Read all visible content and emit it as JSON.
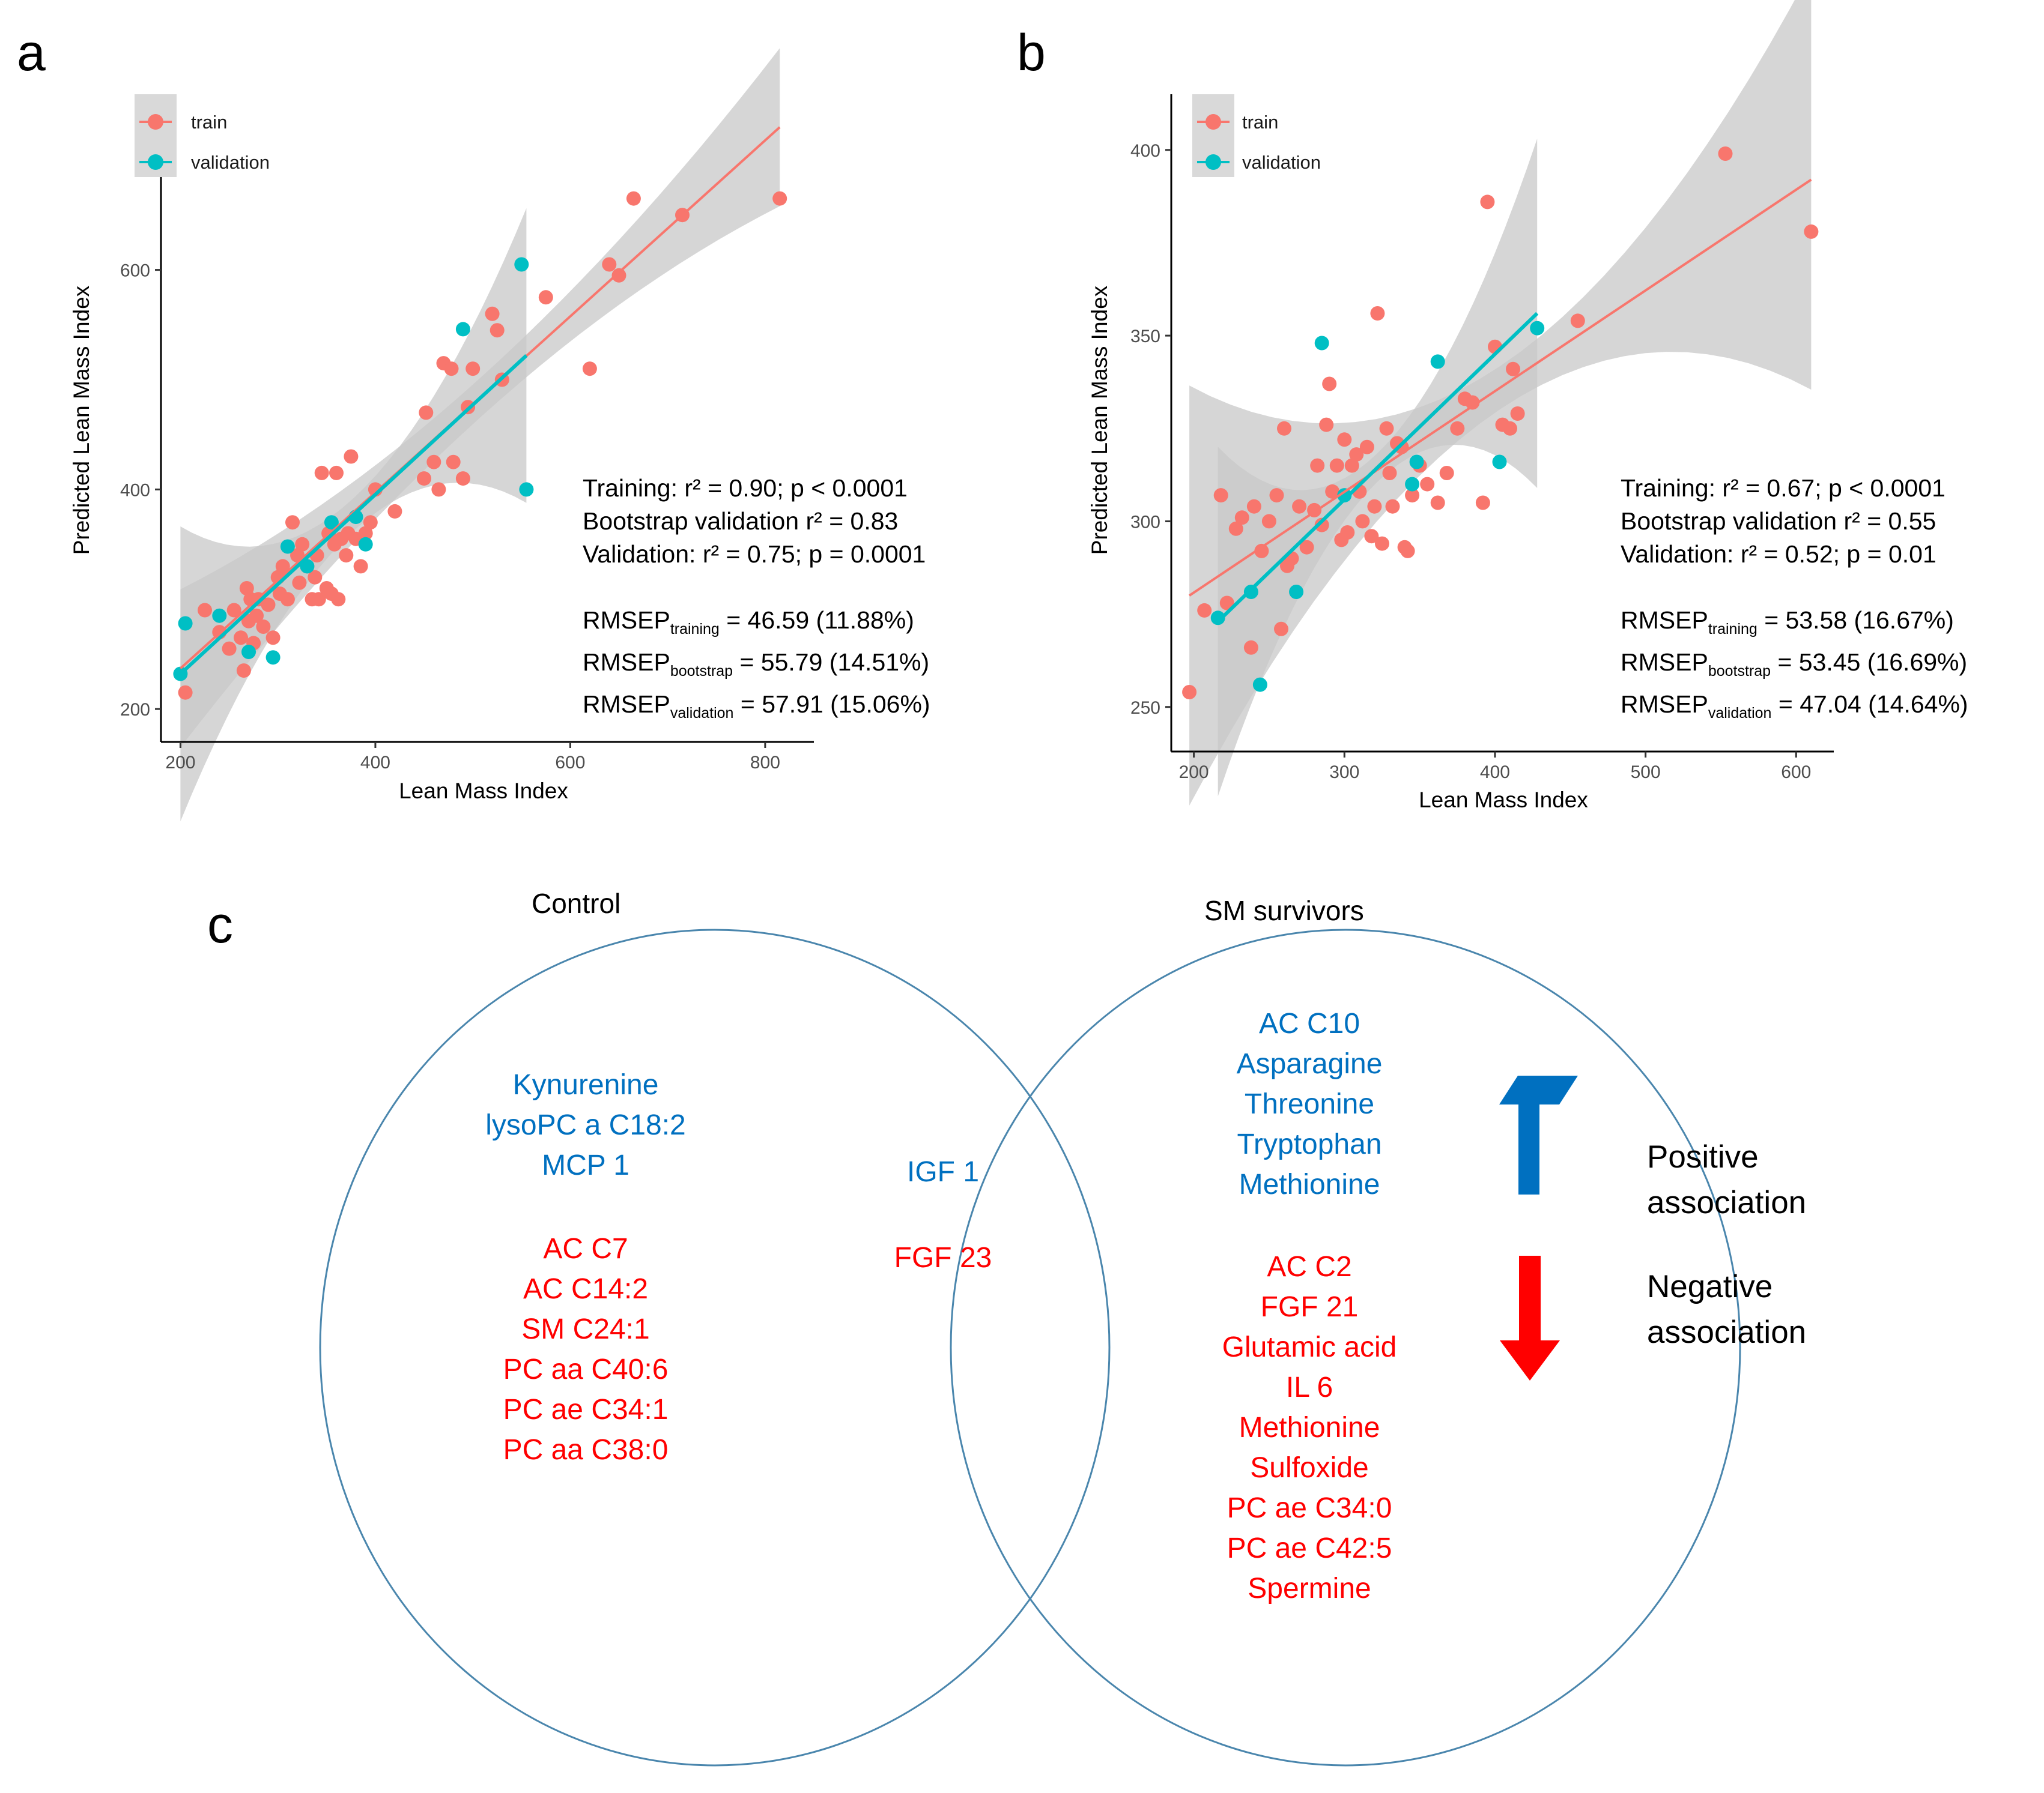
{
  "panel_labels": {
    "a": "a",
    "b": "b",
    "c": "c"
  },
  "colors": {
    "train": "#F8766D",
    "validation": "#00BFC4",
    "band": "#c8c8c8",
    "venn": "#4a86ad",
    "positive": "#0070C0",
    "negative": "#FF0000"
  },
  "legend": {
    "train": "train",
    "validation": "validation"
  },
  "chart_data": [
    {
      "type": "scatter",
      "panel": "a",
      "xlabel": "Lean Mass Index",
      "ylabel": "Predicted Lean Mass Index",
      "xlim": [
        180,
        850
      ],
      "ylim": [
        170,
        760
      ],
      "xticks": [
        200,
        400,
        600,
        800
      ],
      "yticks": [
        200,
        400,
        600
      ],
      "legend_entries": [
        "train",
        "validation"
      ],
      "legend_position": "top-left",
      "series": [
        {
          "name": "train",
          "x": [
            205,
            225,
            240,
            250,
            255,
            262,
            265,
            268,
            270,
            272,
            275,
            278,
            280,
            285,
            290,
            295,
            300,
            302,
            305,
            310,
            315,
            320,
            322,
            325,
            330,
            335,
            338,
            340,
            342,
            345,
            350,
            352,
            355,
            358,
            360,
            362,
            365,
            370,
            372,
            375,
            380,
            385,
            390,
            395,
            400,
            420,
            450,
            452,
            460,
            465,
            470,
            478,
            480,
            490,
            495,
            500,
            520,
            525,
            530,
            575,
            620,
            640,
            650,
            665,
            715,
            815
          ],
          "y": [
            215,
            290,
            270,
            255,
            290,
            265,
            235,
            310,
            280,
            300,
            260,
            285,
            300,
            275,
            295,
            265,
            320,
            305,
            330,
            300,
            370,
            340,
            315,
            350,
            330,
            300,
            320,
            340,
            300,
            415,
            310,
            360,
            305,
            350,
            415,
            300,
            355,
            340,
            360,
            430,
            355,
            330,
            360,
            370,
            400,
            380,
            410,
            470,
            425,
            400,
            515,
            510,
            425,
            410,
            475,
            510,
            560,
            545,
            500,
            575,
            510,
            605,
            595,
            665,
            650,
            665
          ]
        },
        {
          "name": "validation",
          "x": [
            200,
            205,
            240,
            270,
            295,
            310,
            330,
            355,
            380,
            390,
            490,
            550,
            555
          ],
          "y": [
            232,
            278,
            285,
            252,
            247,
            348,
            330,
            370,
            375,
            350,
            546,
            605,
            400
          ]
        }
      ],
      "fits": [
        {
          "name": "train",
          "x": [
            200,
            815
          ],
          "y": [
            237,
            730
          ]
        },
        {
          "name": "validation",
          "x": [
            200,
            555
          ],
          "y": [
            232,
            522
          ]
        }
      ],
      "stats": {
        "training": "Training:  r² = 0.90; p < 0.0001",
        "bootstrap": "Bootstrap  validation  r² = 0.83",
        "validation": "Validation:  r² = 0.75; p = 0.0001",
        "rmsep_label": "RMSEP",
        "rmsep_training_sub": "training",
        "rmsep_training_val": "= 46.59 (11.88%)",
        "rmsep_bootstrap_sub": "bootstrap",
        "rmsep_bootstrap_val": "= 55.79 (14.51%)",
        "rmsep_validation_sub": "validation",
        "rmsep_validation_val": "= 57.91 (15.06%)"
      }
    },
    {
      "type": "scatter",
      "panel": "b",
      "xlabel": "Lean Mass Index",
      "ylabel": "Predicted Lean Mass Index",
      "xlim": [
        185,
        625
      ],
      "ylim": [
        238,
        415
      ],
      "xticks": [
        200,
        300,
        400,
        500,
        600
      ],
      "yticks": [
        250,
        300,
        350,
        400
      ],
      "legend_entries": [
        "train",
        "validation"
      ],
      "legend_position": "top-left",
      "series": [
        {
          "name": "train",
          "x": [
            197,
            207,
            218,
            222,
            228,
            232,
            238,
            240,
            245,
            250,
            255,
            258,
            260,
            262,
            265,
            270,
            275,
            280,
            282,
            285,
            288,
            290,
            292,
            295,
            298,
            300,
            302,
            305,
            308,
            310,
            312,
            315,
            318,
            320,
            322,
            325,
            328,
            330,
            332,
            335,
            338,
            340,
            342,
            345,
            350,
            355,
            362,
            368,
            375,
            380,
            385,
            392,
            395,
            400,
            405,
            410,
            412,
            415,
            455,
            553,
            610
          ],
          "y": [
            254,
            276,
            307,
            278,
            298,
            301,
            266,
            304,
            292,
            300,
            307,
            271,
            325,
            288,
            290,
            304,
            293,
            303,
            315,
            299,
            326,
            337,
            308,
            315,
            295,
            322,
            297,
            315,
            318,
            308,
            300,
            320,
            296,
            304,
            356,
            294,
            325,
            313,
            304,
            321,
            320,
            293,
            292,
            307,
            315,
            310,
            305,
            313,
            325,
            333,
            332,
            305,
            386,
            347,
            326,
            325,
            341,
            329,
            354,
            399,
            378
          ]
        },
        {
          "name": "validation",
          "x": [
            216,
            238,
            244,
            268,
            285,
            300,
            345,
            348,
            362,
            403,
            428
          ],
          "y": [
            274,
            281,
            256,
            281,
            348,
            307,
            310,
            316,
            343,
            316,
            352
          ]
        }
      ],
      "fits": [
        {
          "name": "train",
          "x": [
            197,
            610
          ],
          "y": [
            280,
            392
          ]
        },
        {
          "name": "validation",
          "x": [
            216,
            428
          ],
          "y": [
            273,
            356
          ]
        }
      ],
      "stats": {
        "training": "Training:  r² = 0.67;  p < 0.0001",
        "bootstrap": "Bootstrap  validation  r² = 0.55",
        "validation": "Validation:  r² = 0.52; p = 0.01",
        "rmsep_label": "RMSEP",
        "rmsep_training_sub": "training",
        "rmsep_training_val": "=  53.58 (16.67%)",
        "rmsep_bootstrap_sub": "bootstrap",
        "rmsep_bootstrap_val": "=  53.45 (16.69%)",
        "rmsep_validation_sub": "validation",
        "rmsep_validation_val": "= 47.04 (14.64%)"
      }
    }
  ],
  "venn": {
    "left_title": "Control",
    "right_title": "SM survivors",
    "left_positive": [
      "Kynurenine",
      "lysoPC a C18:2",
      "MCP 1"
    ],
    "left_negative": [
      "AC C7",
      "AC C14:2",
      "SM C24:1",
      "PC aa C40:6",
      "PC ae C34:1",
      "PC aa C38:0"
    ],
    "shared_positive": [
      "IGF 1"
    ],
    "shared_negative": [
      "FGF 23"
    ],
    "right_positive": [
      "AC C10",
      "Asparagine",
      "Threonine",
      "Tryptophan",
      "Methionine"
    ],
    "right_negative": [
      "AC C2",
      "FGF 21",
      "Glutamic acid",
      "IL 6",
      "Methionine",
      "Sulfoxide",
      "PC ae C34:0",
      "PC ae C42:5",
      "Spermine"
    ]
  },
  "association_legend": {
    "positive_line1": "Positive",
    "positive_line2": "association",
    "negative_line1": "Negative",
    "negative_line2": "association"
  }
}
